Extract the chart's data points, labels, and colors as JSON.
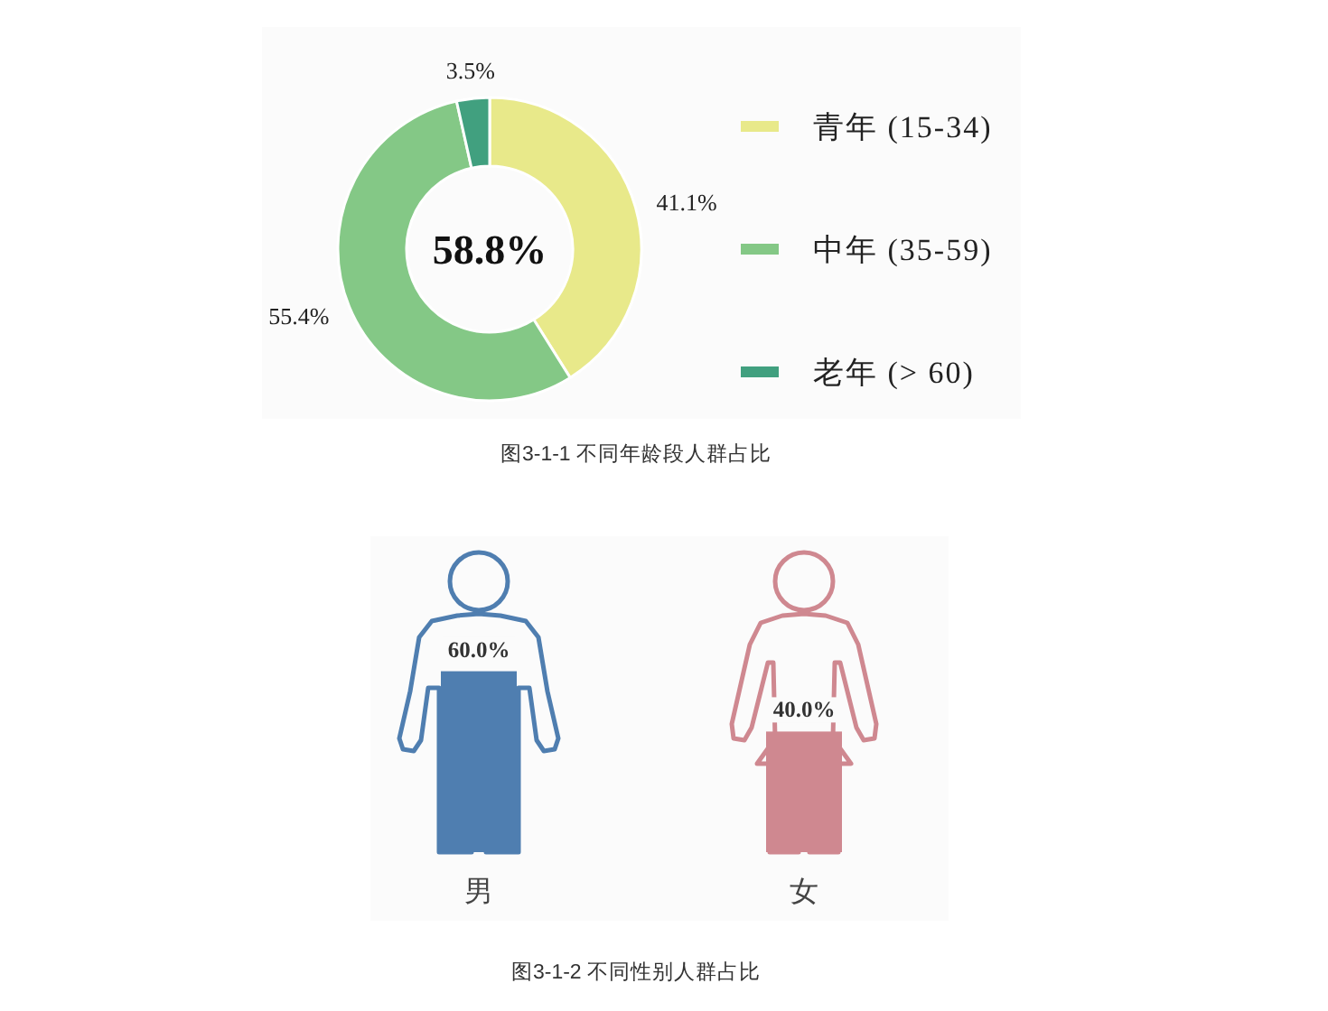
{
  "chart_data": [
    {
      "type": "donut",
      "title": "图3-1-1 不同年龄段人群占比",
      "categories": [
        "青年 (15-34)",
        "中年 (35-59)",
        "老年 (> 60)"
      ],
      "values": [
        41.1,
        55.4,
        3.5
      ],
      "colors": [
        "#e8e98a",
        "#84c886",
        "#41a07f"
      ],
      "value_labels": [
        "41.1%",
        "55.4%",
        "3.5%"
      ],
      "annotations": [
        "58.8%"
      ],
      "legend": "right"
    },
    {
      "type": "bar",
      "title": "图3-1-2 不同性别人群占比",
      "categories": [
        "男",
        "女"
      ],
      "values": [
        60.0,
        40.0
      ],
      "colors": [
        "#4f7eb0",
        "#cf8890"
      ],
      "value_labels": [
        "60.0%",
        "40.0%"
      ]
    }
  ]
}
